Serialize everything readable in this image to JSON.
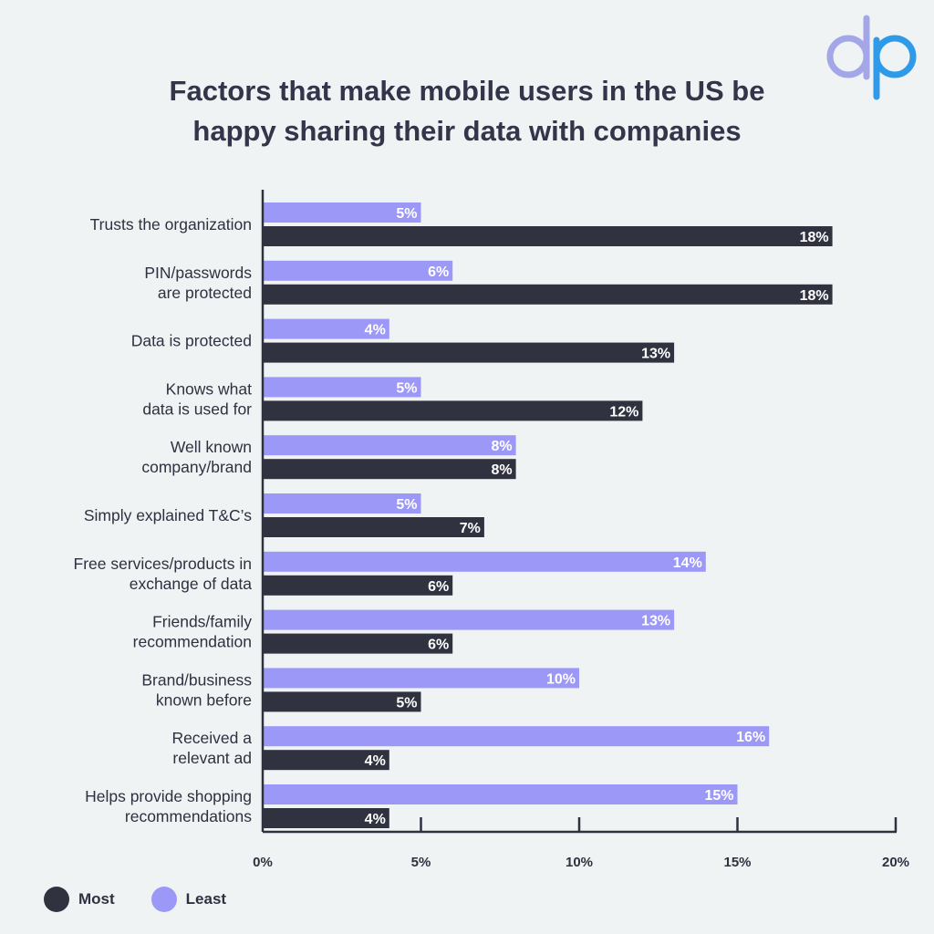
{
  "header": {
    "title_line1": "Factors that make mobile users in the US be",
    "title_line2": "happy sharing their data with companies"
  },
  "logo": {
    "icon": "dp-logo",
    "text": "dp",
    "colors": [
      "#a3a7e8",
      "#2f9be8"
    ]
  },
  "colors": {
    "most": "#30323f",
    "least": "#9c98f8",
    "background": "#eff3f4"
  },
  "chart_data": {
    "type": "bar",
    "orientation": "horizontal",
    "title": "Factors that make mobile users in the US be happy sharing their data with companies",
    "categories": [
      [
        "Trusts the organization"
      ],
      [
        "PIN/passwords",
        "are protected"
      ],
      [
        "Data is protected"
      ],
      [
        "Knows what",
        "data is used for"
      ],
      [
        "Well known",
        "company/brand"
      ],
      [
        "Simply explained T&C’s"
      ],
      [
        "Free services/products in",
        "exchange of data"
      ],
      [
        "Friends/family",
        "recommendation"
      ],
      [
        "Brand/business",
        "known before"
      ],
      [
        "Received a",
        "relevant ad"
      ],
      [
        "Helps provide shopping",
        "recommendations"
      ]
    ],
    "series": [
      {
        "name": "Least",
        "color": "#9c98f8",
        "values": [
          5,
          6,
          4,
          5,
          8,
          5,
          14,
          13,
          10,
          16,
          15
        ],
        "labels": [
          "5%",
          "6%",
          "4%",
          "5%",
          "8%",
          "5%",
          "14%",
          "13%",
          "10%",
          "16%",
          "15%"
        ]
      },
      {
        "name": "Most",
        "color": "#30323f",
        "values": [
          18,
          18,
          13,
          12,
          8,
          7,
          6,
          6,
          5,
          4,
          4
        ],
        "labels": [
          "18%",
          "18%",
          "13%",
          "12%",
          "8%",
          "7%",
          "6%",
          "6%",
          "5%",
          "4%",
          "4%"
        ]
      }
    ],
    "xlim": [
      0,
      20
    ],
    "xticks": [
      0,
      5,
      10,
      15,
      20
    ],
    "xtick_labels": [
      "0%",
      "5%",
      "10%",
      "15%",
      "20%"
    ],
    "xlabel": "",
    "ylabel": "",
    "grid": false,
    "legend": {
      "placement": "bottom-left",
      "items": [
        {
          "name": "Most",
          "color": "#30323f"
        },
        {
          "name": "Least",
          "color": "#9c98f8"
        }
      ]
    }
  }
}
